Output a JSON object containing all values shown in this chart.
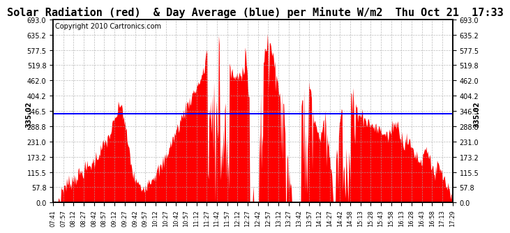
{
  "title": "Solar Radiation (red)  & Day Average (blue) per Minute W/m2  Thu Oct 21  17:33",
  "copyright": "Copyright 2010 Cartronics.com",
  "ymax": 693.0,
  "ymin": 0.0,
  "y_ticks": [
    0.0,
    57.8,
    115.5,
    173.2,
    231.0,
    288.8,
    346.5,
    404.2,
    462.0,
    519.8,
    577.5,
    635.2,
    693.0
  ],
  "y_tick_labels": [
    "0.0",
    "57.8",
    "115.5",
    "173.2",
    "231.0",
    "288.8",
    "346.5",
    "404.2",
    "462.0",
    "519.8",
    "577.5",
    "635.2",
    "693.0"
  ],
  "avg_value": 335.02,
  "avg_label": "335.02",
  "fill_color": "#FF0000",
  "line_color": "#0000FF",
  "background_color": "#FFFFFF",
  "grid_color": "#AAAAAA",
  "title_fontsize": 11,
  "copyright_fontsize": 7,
  "x_tick_labels": [
    "07:41",
    "07:57",
    "08:12",
    "08:27",
    "08:42",
    "08:57",
    "09:12",
    "09:27",
    "09:42",
    "09:57",
    "10:12",
    "10:27",
    "10:42",
    "10:57",
    "11:12",
    "11:27",
    "11:42",
    "11:57",
    "12:12",
    "12:27",
    "12:42",
    "12:57",
    "13:12",
    "13:27",
    "13:42",
    "13:57",
    "14:12",
    "14:27",
    "14:42",
    "14:58",
    "15:13",
    "15:28",
    "15:43",
    "15:58",
    "16:13",
    "16:28",
    "16:43",
    "16:58",
    "17:13",
    "17:29"
  ]
}
